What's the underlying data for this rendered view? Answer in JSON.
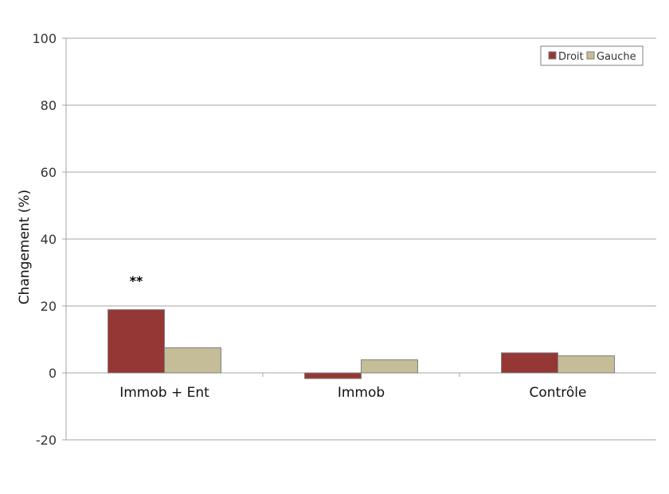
{
  "chart_data": {
    "type": "bar",
    "title": "",
    "xlabel": "",
    "ylabel": "Changement (%)",
    "ylim": [
      -20,
      100
    ],
    "yticks": [
      -20,
      0,
      20,
      40,
      60,
      80,
      100
    ],
    "grid": true,
    "legend_position": "top-right",
    "categories": [
      "Immob + Ent",
      "Immob",
      "Contrôle"
    ],
    "series": [
      {
        "name": "Droit",
        "color": "#953735",
        "values": [
          18.9,
          -1.7,
          6.0
        ]
      },
      {
        "name": "Gauche",
        "color": "#c4bd97",
        "values": [
          7.5,
          3.9,
          5.1
        ]
      }
    ],
    "annotations": [
      {
        "category": "Immob + Ent",
        "text": "**"
      }
    ]
  }
}
